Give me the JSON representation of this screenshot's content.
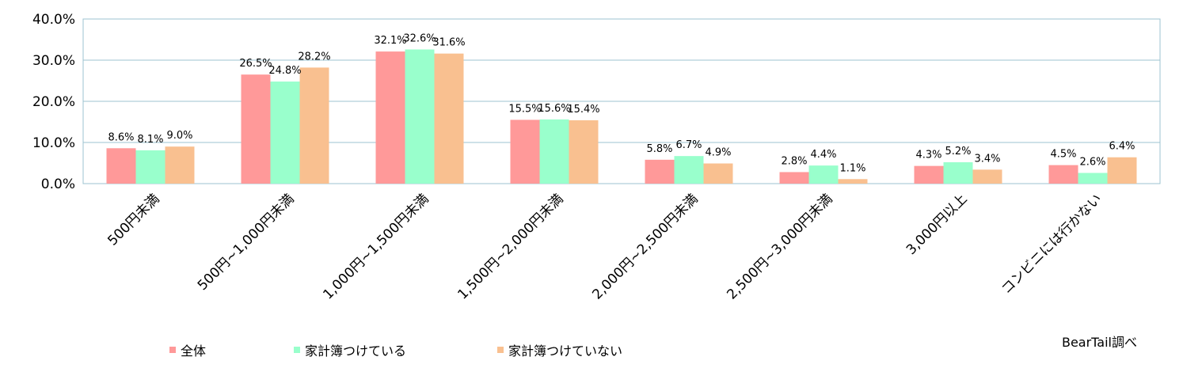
{
  "chart_data": {
    "type": "bar",
    "categories": [
      "500円未満",
      "500円~1,000円未満",
      "1,000円~1,500円未満",
      "1,500円~2,000円未満",
      "2,000円~2,500円未満",
      "2,500円~3,000円未満",
      "3,000円以上",
      "コンビニには行かない"
    ],
    "series": [
      {
        "name": "全体",
        "color": "#ff9999",
        "values": [
          8.6,
          26.5,
          32.1,
          15.5,
          5.8,
          2.8,
          4.3,
          4.5
        ]
      },
      {
        "name": "家計簿つけている",
        "color": "#99ffcc",
        "values": [
          8.1,
          24.8,
          32.6,
          15.6,
          6.7,
          4.4,
          5.2,
          2.6
        ]
      },
      {
        "name": "家計簿つけていない",
        "color": "#f9c090",
        "values": [
          9.0,
          28.2,
          31.6,
          15.4,
          4.9,
          1.1,
          3.4,
          6.4
        ]
      }
    ],
    "ylim": [
      0,
      40
    ],
    "yticks": [
      0,
      10,
      20,
      30,
      40
    ],
    "ytick_labels": [
      "0.0%",
      "10.0%",
      "20.0%",
      "30.0%",
      "40.0%"
    ],
    "value_suffix": "%",
    "grid": true,
    "legend_position": "bottom-left",
    "title": "",
    "xlabel": "",
    "ylabel": "",
    "gridline_color": "#9cc3d0",
    "axis_color": "#9cc3d0"
  },
  "legend": {
    "items": [
      {
        "label": "全体",
        "color": "#ff9999"
      },
      {
        "label": "家計簿つけている",
        "color": "#99ffcc"
      },
      {
        "label": "家計簿つけていない",
        "color": "#f9c090"
      }
    ]
  },
  "source_note": "BearTail調べ"
}
